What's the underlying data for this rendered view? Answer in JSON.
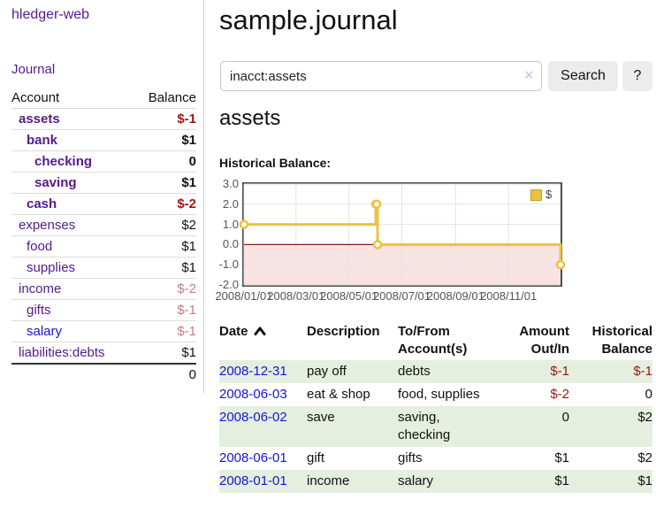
{
  "app": {
    "title": "hledger-web"
  },
  "sidebar": {
    "journal_link": "Journal",
    "table": {
      "headers": {
        "account": "Account",
        "balance": "Balance"
      },
      "rows": [
        {
          "name": "assets",
          "level": 1,
          "bold": true,
          "link": "purple",
          "balance": "$-1",
          "neg": "strong"
        },
        {
          "name": "bank",
          "level": 2,
          "bold": true,
          "link": "purple",
          "balance": "$1",
          "neg": null
        },
        {
          "name": "checking",
          "level": 3,
          "bold": true,
          "link": "purple",
          "balance": "0",
          "neg": null
        },
        {
          "name": "saving",
          "level": 3,
          "bold": true,
          "link": "purple",
          "balance": "$1",
          "neg": null
        },
        {
          "name": "cash",
          "level": 2,
          "bold": true,
          "link": "purple",
          "balance": "$-2",
          "neg": "strong"
        },
        {
          "name": "expenses",
          "level": 1,
          "bold": false,
          "link": "purple",
          "balance": "$2",
          "neg": null
        },
        {
          "name": "food",
          "level": 2,
          "bold": false,
          "link": "purple",
          "balance": "$1",
          "neg": null
        },
        {
          "name": "supplies",
          "level": 2,
          "bold": false,
          "link": "purple",
          "balance": "$1",
          "neg": null
        },
        {
          "name": "income",
          "level": 1,
          "bold": false,
          "link": "purple",
          "balance": "$-2",
          "neg": "muted"
        },
        {
          "name": "gifts",
          "level": 2,
          "bold": false,
          "link": "purple",
          "balance": "$-1",
          "neg": "muted"
        },
        {
          "name": "salary",
          "level": 2,
          "bold": false,
          "link": "blue",
          "balance": "$-1",
          "neg": "muted"
        },
        {
          "name": "liabilities:debts",
          "level": 1,
          "bold": false,
          "link": "purple",
          "balance": "$1",
          "neg": null
        }
      ],
      "total": "0"
    }
  },
  "header": {
    "title": "sample.journal"
  },
  "search": {
    "value": "inacct:assets",
    "clear_icon": "✕",
    "button": "Search",
    "help_button": "?"
  },
  "account_page": {
    "heading": "assets",
    "chart_label": "Historical Balance:"
  },
  "chart_data": {
    "type": "line",
    "step": true,
    "title": "Historical Balance",
    "series": [
      {
        "name": "$",
        "color": "#EDC240",
        "points": [
          [
            "2008-01-01",
            1
          ],
          [
            "2008-06-01",
            2
          ],
          [
            "2008-06-02",
            2
          ],
          [
            "2008-06-03",
            0
          ],
          [
            "2008-12-31",
            -1
          ]
        ]
      }
    ],
    "x_domain": [
      "2008-01-01",
      "2008-12-31"
    ],
    "x_ticks": [
      "2008/01/01",
      "2008/03/01",
      "2008/05/01",
      "2008/07/01",
      "2008/09/01",
      "2008/11/01"
    ],
    "y_ticks": [
      "3.0",
      "2.0",
      "1.0",
      "0.0",
      "-1.0",
      "-2.0"
    ],
    "ylim": [
      -2,
      3
    ],
    "grid": true,
    "grid_color": "#e3e3e3",
    "negative_region_color": "#f9e2e2",
    "zero_line_color": "#8b1a1a",
    "legend": {
      "label": "$",
      "position": "top-right"
    }
  },
  "register": {
    "columns": [
      "Date",
      "Description",
      "To/From Account(s)",
      "Amount Out/In",
      "Historical Balance"
    ],
    "sort": "ascending",
    "rows": [
      {
        "date": "2008-12-31",
        "description": "pay off",
        "accounts": "debts",
        "amount": "$-1",
        "balance": "$-1"
      },
      {
        "date": "2008-06-03",
        "description": "eat & shop",
        "accounts": "food, supplies",
        "amount": "$-2",
        "balance": "0"
      },
      {
        "date": "2008-06-02",
        "description": "save",
        "accounts": "saving, checking",
        "amount": "0",
        "balance": "$2"
      },
      {
        "date": "2008-06-01",
        "description": "gift",
        "accounts": "gifts",
        "amount": "$1",
        "balance": "$2"
      },
      {
        "date": "2008-01-01",
        "description": "income",
        "accounts": "salary",
        "amount": "$1",
        "balance": "$1"
      }
    ]
  },
  "colors": {
    "link_purple": "#551A8B",
    "link_blue": "#1414d6",
    "negative_strong": "#9d1515",
    "negative_muted": "#c17d7e",
    "row_green": "#e4efdf",
    "series_gold": "#EDC240"
  }
}
